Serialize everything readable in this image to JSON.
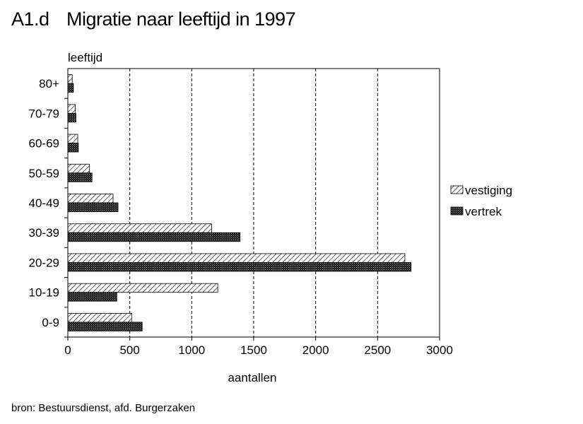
{
  "header": {
    "figure_id": "A1.d",
    "title": "Migratie naar leeftijd in 1997"
  },
  "footer": {
    "source": "bron: Bestuursdienst, afd. Burgerzaken"
  },
  "chart_data": {
    "type": "bar",
    "orientation": "horizontal",
    "title": "Migratie naar leeftijd in 1997",
    "xlabel": "aantallen",
    "ylabel": "leeftijd",
    "categories": [
      "0-9",
      "10-19",
      "20-29",
      "30-39",
      "40-49",
      "50-59",
      "60-69",
      "70-79",
      "80+"
    ],
    "series": [
      {
        "name": "vestiging",
        "values": [
          515,
          1210,
          2720,
          1160,
          365,
          175,
          80,
          60,
          35
        ],
        "pattern": "diagonal-hatch",
        "color": "#ffffff"
      },
      {
        "name": "vertrek",
        "values": [
          600,
          395,
          2770,
          1390,
          405,
          195,
          85,
          65,
          45
        ],
        "pattern": "dense-dots",
        "color": "#222222"
      }
    ],
    "xlim": [
      0,
      3000
    ],
    "xticks": [
      "0",
      "500",
      "1000",
      "1500",
      "2000",
      "2500",
      "3000"
    ],
    "grid": "vertical dashed",
    "legend": "right"
  }
}
